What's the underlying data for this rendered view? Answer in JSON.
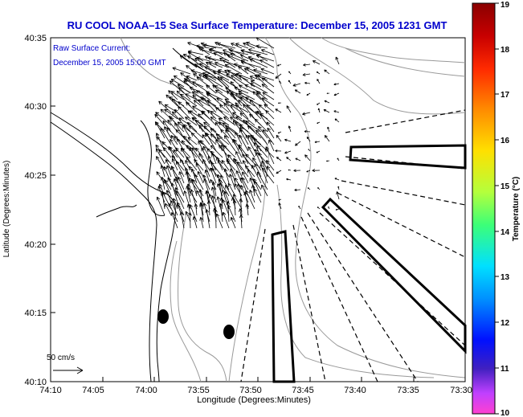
{
  "title": "RU COOL   NOAA–15  Sea Surface Temperature:  December 15, 2005 1231 GMT",
  "legend_lines": [
    "Raw Surface Current:",
    "December 15, 2005 15:00 GMT"
  ],
  "scale_label": "50 cm/s",
  "xlabel": "Longitude (Degrees:Minutes)",
  "ylabel": "Latitude (Degrees:Minutes)",
  "x_ticks": [
    "74:10",
    "74:05",
    "74:00",
    "73:55",
    "73:50",
    "73:45",
    "73:40",
    "73:35",
    "73:30"
  ],
  "y_ticks": [
    "40:35",
    "40:30",
    "40:25",
    "40:20",
    "40:15",
    "40:10"
  ],
  "colorbar": {
    "label": "Temperature (°C)",
    "min": 10,
    "max": 19,
    "ticks": [
      "19",
      "18",
      "17",
      "16",
      "15",
      "14",
      "13",
      "12",
      "11",
      "10"
    ]
  },
  "colors": {
    "title": "#0000cc",
    "legend": "#0000cc",
    "axis": "#000000",
    "contour": "#999999",
    "coast": "#000000"
  }
}
